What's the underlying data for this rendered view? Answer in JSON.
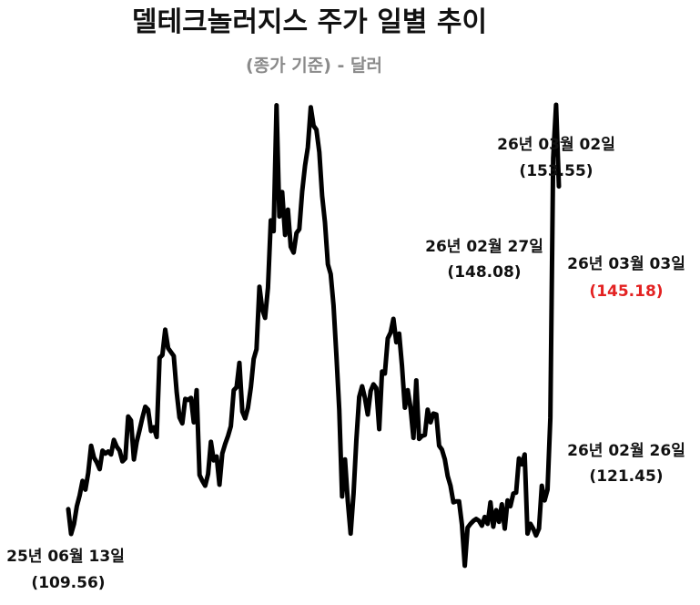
{
  "chart_data": {
    "type": "line",
    "title": "델테크놀러지스 주가 일별 추이",
    "subtitle": "(종가 기준) - 달러",
    "xlabel": "",
    "ylabel": "",
    "grid": false,
    "ylim": [
      100,
      162
    ],
    "colors": {
      "line": "#000000",
      "highlight": "#e32222"
    },
    "series": [
      {
        "values": [
          112.1,
          109.56,
          110.6,
          112.4,
          113.5,
          115.0,
          114.1,
          115.8,
          118.6,
          117.4,
          116.9,
          116.2,
          118.1,
          117.8,
          118.0,
          117.7,
          119.2,
          118.5,
          118.1,
          117.0,
          117.3,
          121.6,
          121.2,
          117.2,
          119.0,
          120.2,
          121.5,
          122.6,
          122.3,
          120.1,
          120.5,
          119.5,
          127.6,
          127.9,
          130.5,
          128.6,
          128.2,
          127.8,
          124.1,
          121.5,
          120.9,
          123.4,
          123.3,
          123.5,
          121.0,
          124.3,
          115.6,
          115.0,
          114.5,
          115.7,
          119.0,
          117.1,
          117.5,
          114.6,
          117.8,
          118.8,
          119.6,
          120.6,
          124.3,
          124.6,
          127.1,
          122.1,
          121.4,
          122.5,
          124.6,
          127.5,
          128.5,
          134.9,
          132.6,
          131.7,
          134.8,
          141.7,
          140.6,
          153.5,
          142.1,
          144.6,
          140.2,
          142.8,
          139.0,
          138.4,
          140.4,
          140.8,
          144.7,
          147.3,
          149.2,
          153.3,
          151.4,
          151.0,
          148.7,
          144.2,
          141.5,
          137.2,
          136.2,
          133.0,
          127.8,
          122.3,
          113.4,
          117.2,
          112.9,
          109.6,
          113.7,
          119.2,
          123.6,
          124.7,
          123.5,
          121.8,
          124.2,
          124.9,
          124.5,
          120.3,
          126.2,
          126.0,
          129.6,
          130.2,
          131.6,
          129.2,
          130.1,
          126.8,
          122.5,
          124.3,
          122.5,
          119.4,
          125.3,
          119.3,
          119.6,
          119.7,
          122.3,
          121.0,
          121.9,
          121.8,
          118.6,
          118.2,
          117.2,
          115.5,
          114.5,
          112.8,
          112.9,
          112.9,
          110.5,
          106.3,
          110.2,
          110.6,
          110.9,
          111.1,
          110.9,
          110.4,
          111.3,
          110.6,
          112.8,
          110.3,
          112.0,
          110.8,
          112.6,
          110.1,
          113.0,
          112.4,
          113.7,
          113.8,
          117.3,
          116.7,
          117.7,
          109.6,
          110.6,
          110.1,
          109.4,
          110.1,
          114.5,
          113.0,
          114.1,
          121.45,
          148.08,
          153.55,
          145.18
        ]
      }
    ],
    "annotations": [
      {
        "date_label": "25년 06월 13일",
        "value_label": "(109.56)"
      },
      {
        "date_label": "26년 02월 26일",
        "value_label": "(121.45)"
      },
      {
        "date_label": "26년 02월 27일",
        "value_label": "(148.08)"
      },
      {
        "date_label": "26년 03월 02일",
        "value_label": "(153.55)"
      },
      {
        "date_label": "26년 03월 03일",
        "value_label": "(145.18)"
      }
    ]
  }
}
